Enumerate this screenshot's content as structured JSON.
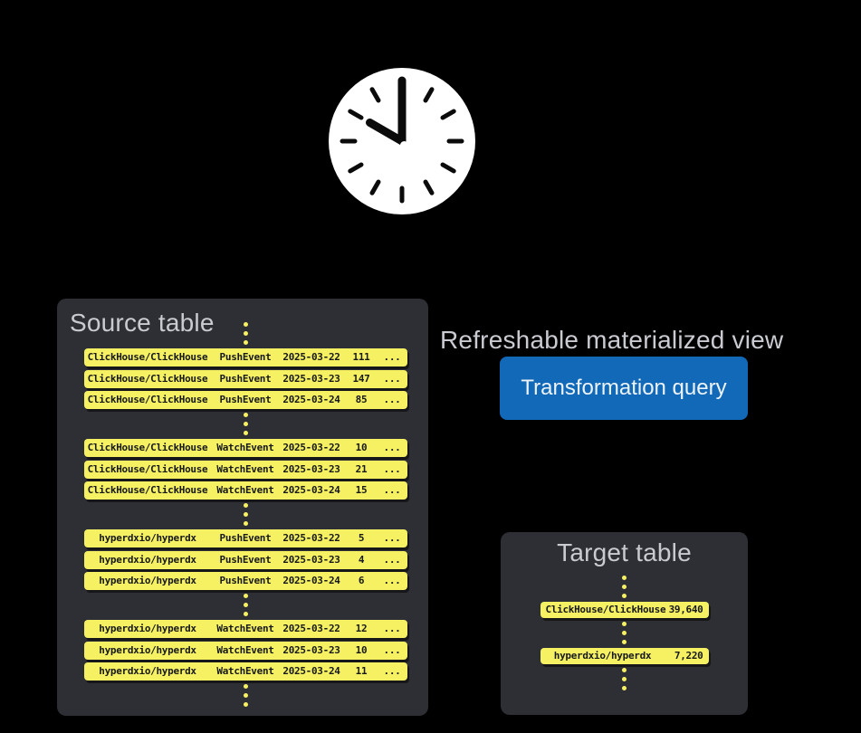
{
  "clock": {
    "hour": 10,
    "minute": 0
  },
  "source_table": {
    "title": "Source table",
    "groups": [
      {
        "rows": [
          [
            "ClickHouse/ClickHouse",
            "PushEvent",
            "2025-03-22",
            "111",
            "..."
          ],
          [
            "ClickHouse/ClickHouse",
            "PushEvent",
            "2025-03-23",
            "147",
            "..."
          ],
          [
            "ClickHouse/ClickHouse",
            "PushEvent",
            "2025-03-24",
            "85",
            "..."
          ]
        ]
      },
      {
        "rows": [
          [
            "ClickHouse/ClickHouse",
            "WatchEvent",
            "2025-03-22",
            "10",
            "..."
          ],
          [
            "ClickHouse/ClickHouse",
            "WatchEvent",
            "2025-03-23",
            "21",
            "..."
          ],
          [
            "ClickHouse/ClickHouse",
            "WatchEvent",
            "2025-03-24",
            "15",
            "..."
          ]
        ]
      },
      {
        "rows": [
          [
            "hyperdxio/hyperdx",
            "PushEvent",
            "2025-03-22",
            "5",
            "..."
          ],
          [
            "hyperdxio/hyperdx",
            "PushEvent",
            "2025-03-23",
            "4",
            "..."
          ],
          [
            "hyperdxio/hyperdx",
            "PushEvent",
            "2025-03-24",
            "6",
            "..."
          ]
        ]
      },
      {
        "rows": [
          [
            "hyperdxio/hyperdx",
            "WatchEvent",
            "2025-03-22",
            "12",
            "..."
          ],
          [
            "hyperdxio/hyperdx",
            "WatchEvent",
            "2025-03-23",
            "10",
            "..."
          ],
          [
            "hyperdxio/hyperdx",
            "WatchEvent",
            "2025-03-24",
            "11",
            "..."
          ]
        ]
      }
    ]
  },
  "materialized_view": {
    "title": "Refreshable materialized view",
    "button_label": "Transformation query"
  },
  "target_table": {
    "title": "Target table",
    "groups": [
      {
        "rows": [
          [
            "ClickHouse/ClickHouse",
            "39,640"
          ]
        ]
      },
      {
        "rows": [
          [
            "hyperdxio/hyperdx",
            "7,220"
          ]
        ]
      }
    ]
  },
  "colors": {
    "background": "#000000",
    "panel": "#2e2f34",
    "row_yellow": "#f5f163",
    "button_blue": "#1269b7",
    "heading_gray": "#c9cbd1"
  }
}
